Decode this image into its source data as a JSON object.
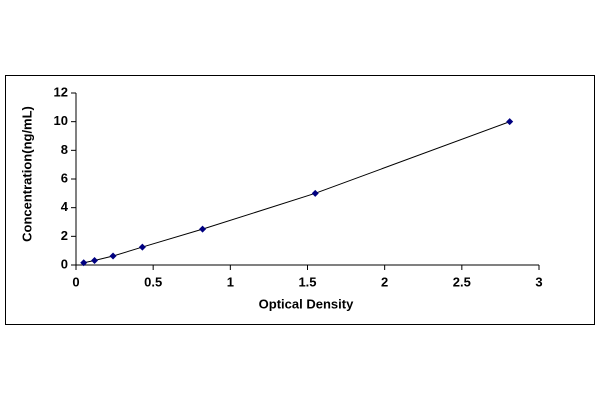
{
  "chart_data": {
    "type": "scatter",
    "xlabel": "Optical Density",
    "ylabel": "Concentration(ng/mL)",
    "x": [
      0.05,
      0.12,
      0.24,
      0.43,
      0.82,
      1.55,
      2.81
    ],
    "values": [
      0.156,
      0.312,
      0.625,
      1.25,
      2.5,
      5,
      10
    ],
    "color": "#000080",
    "line_color": "#000000",
    "xlim": [
      0,
      3
    ],
    "xticks": [
      0,
      0.5,
      1,
      1.5,
      2,
      2.5,
      3
    ],
    "ylim": [
      0,
      12
    ],
    "yticks": [
      0,
      2,
      4,
      6,
      8,
      10,
      12
    ],
    "grid": false
  }
}
